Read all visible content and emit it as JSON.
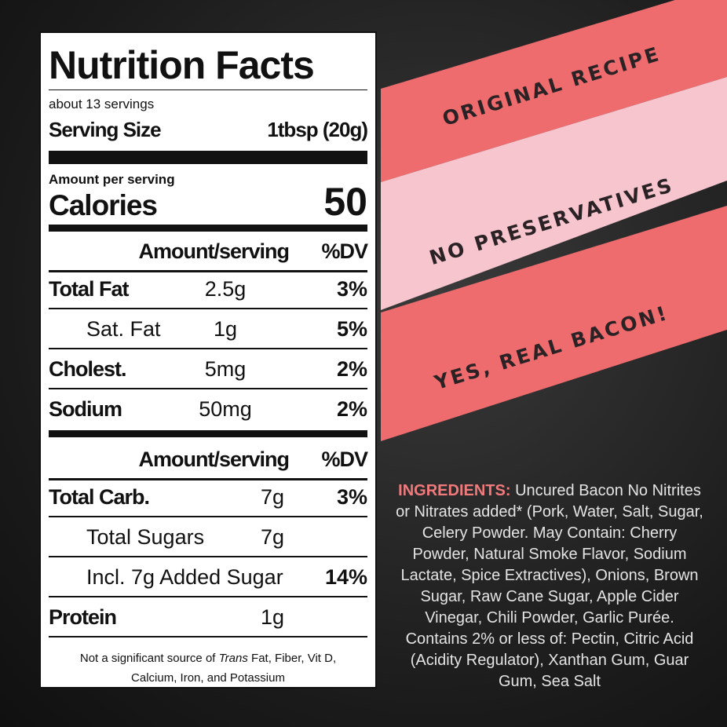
{
  "nutrition_facts": {
    "title": "Nutrition Facts",
    "servings": "about 13 servings",
    "serving_size": {
      "label": "Serving Size",
      "value": "1tbsp (20g)"
    },
    "amount_per_serving": "Amount per serving",
    "calories": {
      "label": "Calories",
      "value": "50"
    },
    "sections": [
      {
        "header": {
          "amount": "Amount/serving",
          "dv": "%DV"
        },
        "rows": [
          {
            "name": "Total Fat",
            "amount": "2.5g",
            "dv": "3%"
          },
          {
            "name": "Sat. Fat",
            "amount": "1g",
            "dv": "5%",
            "indent": true
          },
          {
            "name": "Cholest.",
            "amount": "5mg",
            "dv": "2%"
          },
          {
            "name": "Sodium",
            "amount": "50mg",
            "dv": "2%"
          }
        ]
      },
      {
        "header": {
          "amount": "Amount/serving",
          "dv": "%DV"
        },
        "rows": [
          {
            "name": "Total Carb.",
            "amount": "7g",
            "dv": "3%"
          },
          {
            "name": "Total Sugars",
            "amount": "7g",
            "indent": true
          },
          {
            "name": "Incl. 7g Added Sugar",
            "dv": "14%",
            "indent": true
          },
          {
            "name": "Protein",
            "amount": "1g"
          }
        ]
      }
    ],
    "footnote": {
      "before": "Not a significant source of ",
      "italic": "Trans",
      "after": " Fat, Fiber, Vit D,",
      "line2": "Calcium, Iron, and Potassium"
    }
  },
  "banners": [
    "ORIGINAL RECIPE",
    "NO PRESERVATIVES",
    "YES, REAL BACON!"
  ],
  "ingredients": {
    "label": "INGREDIENTS:",
    "text": "Uncured Bacon No Nitrites or Nitrates added* (Pork, Water, Salt, Sugar, Celery Powder. May Contain: Cherry Powder, Natural Smoke Flavor, Sodium Lactate, Spice Extractives), Onions, Brown Sugar, Raw Cane Sugar, Apple Cider Vinegar, Chili Powder, Garlic Purée. Contains 2% or less of: Pectin, Citric Acid (Acidity Regulator), Xanthan Gum, Guar Gum, Sea Salt"
  }
}
